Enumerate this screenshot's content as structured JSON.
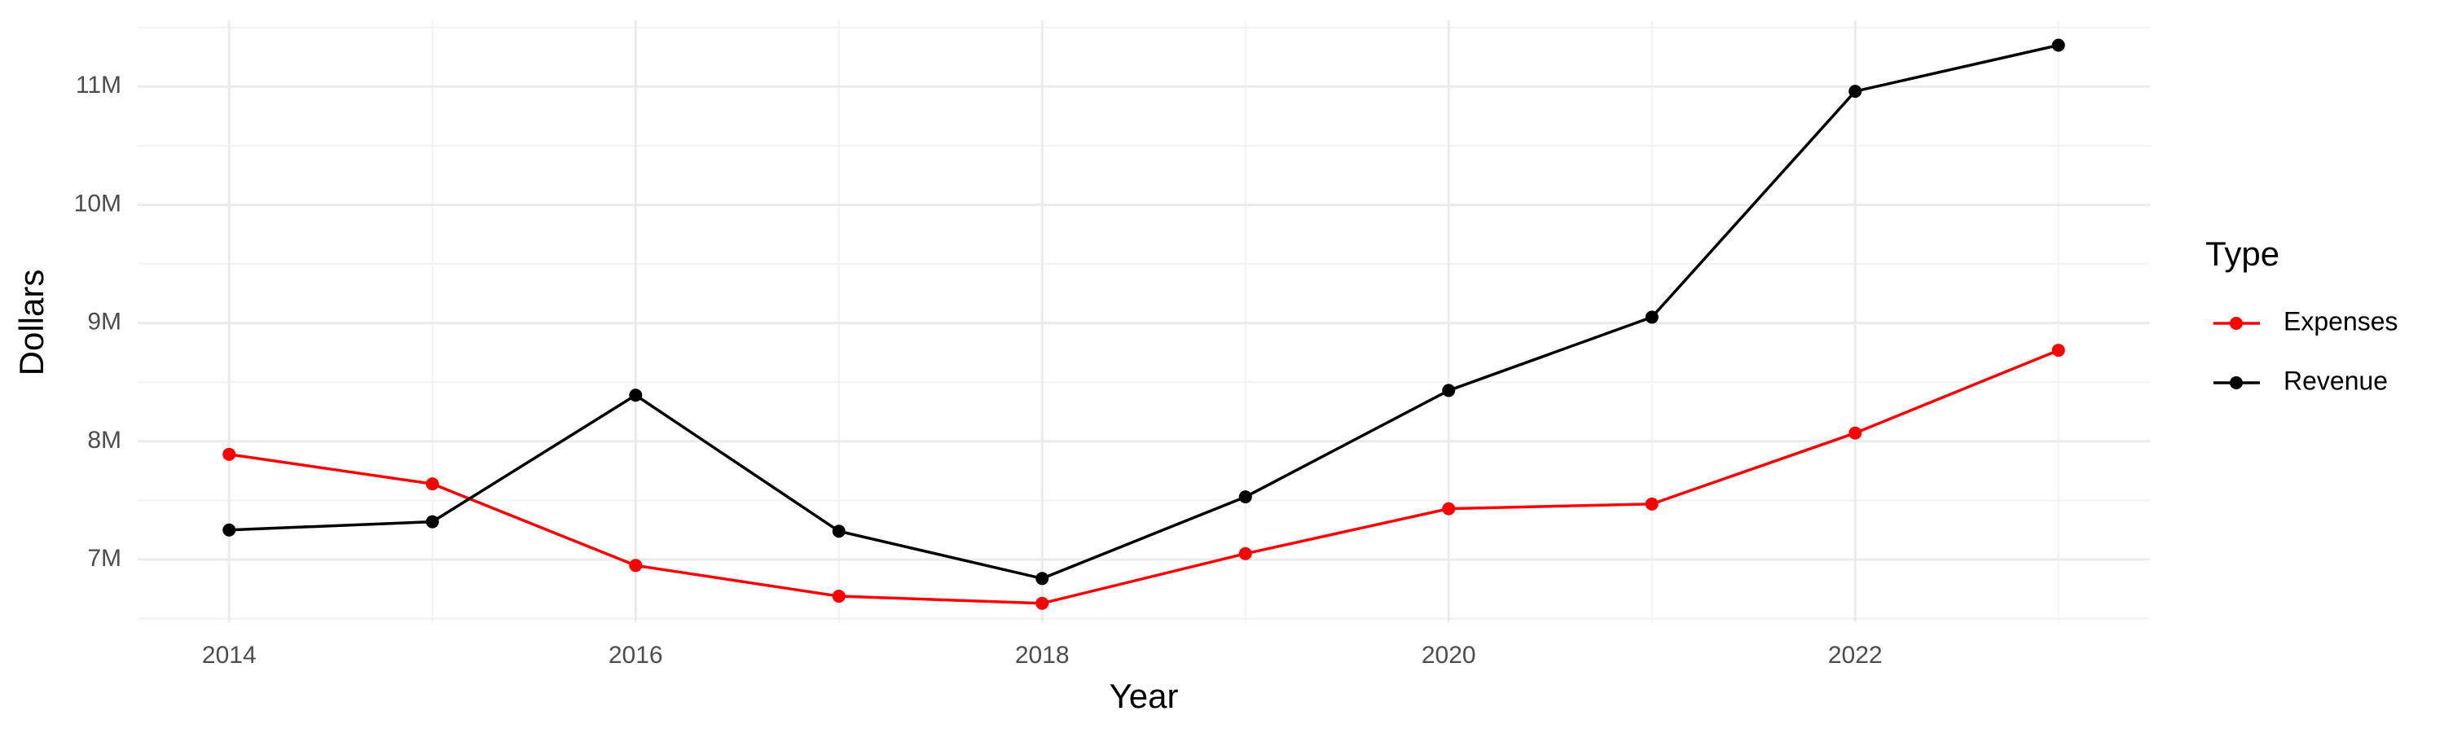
{
  "chart_data": {
    "type": "line",
    "x_label": "Year",
    "y_label": "Dollars",
    "legend_title": "Type",
    "legend_position": "right",
    "grid": true,
    "x": [
      2014,
      2015,
      2016,
      2017,
      2018,
      2019,
      2020,
      2021,
      2022,
      2023
    ],
    "series": [
      {
        "name": "Expenses",
        "color": "#ff0000",
        "values": [
          7890000,
          7640000,
          6950000,
          6690000,
          6630000,
          7050000,
          7430000,
          7470000,
          8070000,
          8770000
        ]
      },
      {
        "name": "Revenue",
        "color": "#000000",
        "values": [
          7250000,
          7320000,
          8390000,
          7240000,
          6840000,
          7530000,
          8430000,
          9050000,
          10960000,
          11350000
        ]
      }
    ],
    "xlim": [
      2013.55,
      2023.45
    ],
    "xticks": [
      2014,
      2016,
      2018,
      2020,
      2022
    ],
    "ylim": [
      6470000,
      11560000
    ],
    "yticks": [
      {
        "value": 7000000,
        "label": "7M"
      },
      {
        "value": 8000000,
        "label": "8M"
      },
      {
        "value": 9000000,
        "label": "9M"
      },
      {
        "value": 10000000,
        "label": "10M"
      },
      {
        "value": 11000000,
        "label": "11M"
      }
    ]
  }
}
